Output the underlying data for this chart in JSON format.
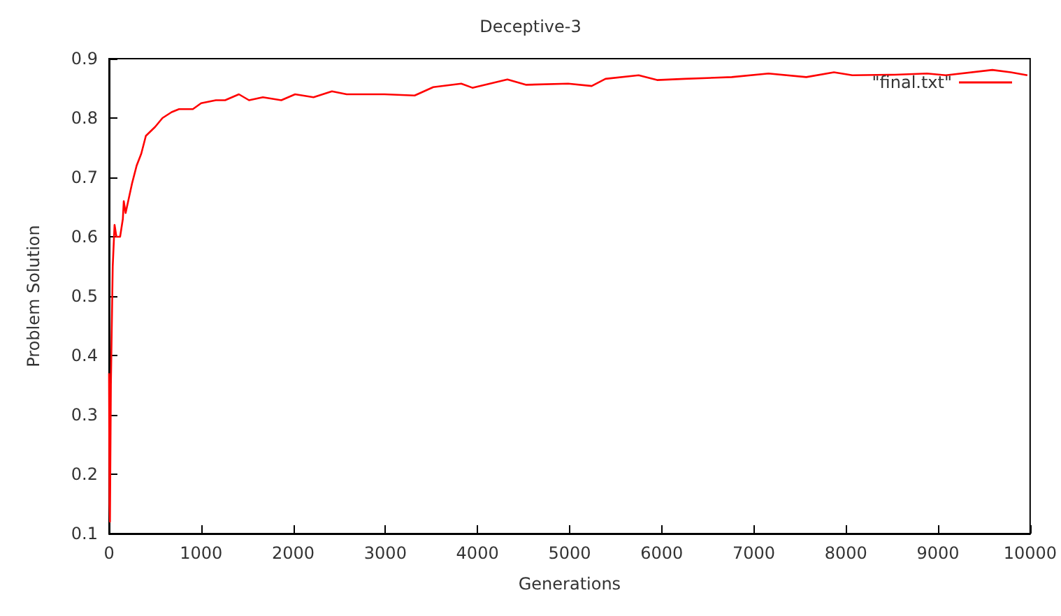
{
  "chart_data": {
    "type": "line",
    "title": "Deceptive-3",
    "xlabel": "Generations",
    "ylabel": "Problem Solution",
    "xlim": [
      0,
      10000
    ],
    "xticks": [
      0,
      1000,
      2000,
      3000,
      4000,
      5000,
      6000,
      7000,
      8000,
      9000,
      10000
    ],
    "ylim": [
      0.1,
      0.9
    ],
    "yticks": [
      0.1,
      0.2,
      0.3,
      0.4,
      0.5,
      0.6,
      0.7,
      0.8,
      0.9
    ],
    "grid": false,
    "legend": "top right",
    "marker": "none",
    "line_style": "solid",
    "series": [
      {
        "name": "\"final.txt\"",
        "color": "#ff0000",
        "x": [
          0,
          5,
          10,
          20,
          40,
          60,
          80,
          100,
          120,
          130,
          150,
          160,
          180,
          250,
          300,
          350,
          400,
          500,
          580,
          680,
          760,
          910,
          1000,
          1160,
          1260,
          1410,
          1520,
          1670,
          1870,
          2020,
          2220,
          2420,
          2580,
          2780,
          2990,
          3318,
          3520,
          3824,
          3945,
          4325,
          4530,
          4985,
          5240,
          5390,
          5750,
          5950,
          6250,
          6760,
          7160,
          7570,
          7870,
          8070,
          8530,
          8880,
          9085,
          9590,
          9790,
          9970
        ],
        "values": [
          0.37,
          0.15,
          0.12,
          0.35,
          0.55,
          0.62,
          0.6,
          0.6,
          0.6,
          0.6,
          0.63,
          0.66,
          0.64,
          0.69,
          0.72,
          0.74,
          0.77,
          0.785,
          0.8,
          0.81,
          0.815,
          0.815,
          0.825,
          0.83,
          0.83,
          0.84,
          0.83,
          0.835,
          0.83,
          0.84,
          0.835,
          0.845,
          0.84,
          0.84,
          0.84,
          0.838,
          0.852,
          0.858,
          0.851,
          0.865,
          0.856,
          0.858,
          0.854,
          0.866,
          0.872,
          0.864,
          0.866,
          0.869,
          0.875,
          0.869,
          0.877,
          0.872,
          0.873,
          0.875,
          0.872,
          0.881,
          0.877,
          0.872
        ]
      }
    ]
  }
}
